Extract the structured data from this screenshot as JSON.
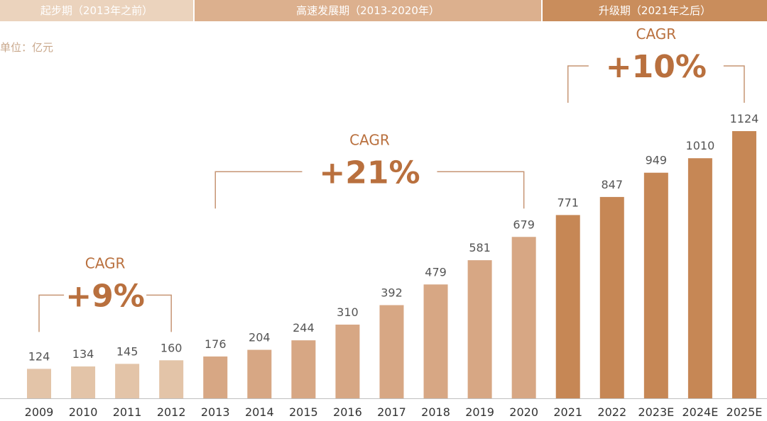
{
  "phases": [
    {
      "label": "起步期（2013年之前）",
      "color": "#ebd3bd"
    },
    {
      "label": "高速发展期（2013-2020年）",
      "color": "#dcb08e"
    },
    {
      "label": "升级期（2021年之后）",
      "color": "#c98d5c"
    }
  ],
  "unit_label": "单位：亿元",
  "chart_data": {
    "type": "bar",
    "categories": [
      "2009",
      "2010",
      "2011",
      "2012",
      "2013",
      "2014",
      "2015",
      "2016",
      "2017",
      "2018",
      "2019",
      "2020",
      "2021",
      "2022",
      "2023E",
      "2024E",
      "2025E"
    ],
    "values": [
      124,
      134,
      145,
      160,
      176,
      204,
      244,
      310,
      392,
      479,
      581,
      679,
      771,
      847,
      949,
      1010,
      1124
    ],
    "value_labels": [
      "124",
      "134",
      "145",
      "160",
      "176",
      "204",
      "244",
      "310",
      "392",
      "479",
      "581",
      "679",
      "771",
      "847",
      "949",
      "1010",
      "1124"
    ],
    "ylim": [
      0,
      1124
    ],
    "colors": {
      "phase1": "#e3c4a8",
      "phase2": "#d7a784",
      "phase3": "#c68755"
    },
    "annotations": [
      {
        "label": "CAGR",
        "value": "+9%",
        "from": "2009",
        "to": "2012"
      },
      {
        "label": "CAGR",
        "value": "+21%",
        "from": "2013",
        "to": "2020"
      },
      {
        "label": "CAGR",
        "value": "+10%",
        "from": "2021",
        "to": "2025E"
      }
    ]
  }
}
